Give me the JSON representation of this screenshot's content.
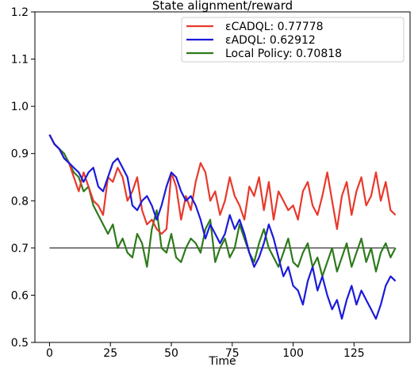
{
  "chart_data": {
    "type": "line",
    "title": "State alignment/reward",
    "xlabel": "Time",
    "ylabel": "",
    "xlim": [
      -6,
      148
    ],
    "ylim": [
      0.5,
      1.2
    ],
    "x_ticks": [
      0,
      25,
      50,
      75,
      100,
      125
    ],
    "y_ticks": [
      0.5,
      0.6,
      0.7,
      0.8,
      0.9,
      1.0,
      1.1,
      1.2
    ],
    "x_tick_labels": [
      "0",
      "25",
      "50",
      "75",
      "100",
      "125"
    ],
    "y_tick_labels": [
      "0.5",
      "0.6",
      "0.7",
      "0.8",
      "0.9",
      "1.0",
      "1.1",
      "1.2"
    ],
    "grid": false,
    "legend_position": "top-right",
    "reference_line": {
      "y": 0.7,
      "x": [
        0,
        142
      ],
      "color": "#000000"
    },
    "series": [
      {
        "name": "εCADQL: 0.77778",
        "color": "#e8392b",
        "x": [
          0,
          2,
          4,
          6,
          8,
          10,
          12,
          14,
          16,
          18,
          20,
          22,
          24,
          26,
          28,
          30,
          32,
          34,
          36,
          38,
          40,
          42,
          44,
          46,
          48,
          50,
          52,
          54,
          56,
          58,
          60,
          62,
          64,
          66,
          68,
          70,
          72,
          74,
          76,
          78,
          80,
          82,
          84,
          86,
          88,
          90,
          92,
          94,
          96,
          98,
          100,
          102,
          104,
          106,
          108,
          110,
          112,
          114,
          116,
          118,
          120,
          122,
          124,
          126,
          128,
          130,
          132,
          134,
          136,
          138,
          140,
          142
        ],
        "y": [
          0.94,
          0.92,
          0.91,
          0.89,
          0.88,
          0.85,
          0.82,
          0.86,
          0.83,
          0.8,
          0.79,
          0.77,
          0.85,
          0.84,
          0.87,
          0.85,
          0.8,
          0.82,
          0.85,
          0.78,
          0.75,
          0.76,
          0.74,
          0.73,
          0.74,
          0.86,
          0.83,
          0.76,
          0.81,
          0.78,
          0.84,
          0.88,
          0.86,
          0.8,
          0.82,
          0.77,
          0.8,
          0.85,
          0.81,
          0.79,
          0.76,
          0.83,
          0.81,
          0.85,
          0.78,
          0.84,
          0.76,
          0.82,
          0.8,
          0.78,
          0.79,
          0.76,
          0.82,
          0.84,
          0.79,
          0.77,
          0.81,
          0.86,
          0.8,
          0.74,
          0.81,
          0.84,
          0.77,
          0.82,
          0.85,
          0.79,
          0.81,
          0.86,
          0.8,
          0.84,
          0.78,
          0.77
        ]
      },
      {
        "name": "εADQL: 0.62912",
        "color": "#1a1adb",
        "x": [
          0,
          2,
          4,
          6,
          8,
          10,
          12,
          14,
          16,
          18,
          20,
          22,
          24,
          26,
          28,
          30,
          32,
          34,
          36,
          38,
          40,
          42,
          44,
          46,
          48,
          50,
          52,
          54,
          56,
          58,
          60,
          62,
          64,
          66,
          68,
          70,
          72,
          74,
          76,
          78,
          80,
          82,
          84,
          86,
          88,
          90,
          92,
          94,
          96,
          98,
          100,
          102,
          104,
          106,
          108,
          110,
          112,
          114,
          116,
          118,
          120,
          122,
          124,
          126,
          128,
          130,
          132,
          134,
          136,
          138,
          140,
          142
        ],
        "y": [
          0.94,
          0.92,
          0.91,
          0.89,
          0.88,
          0.87,
          0.86,
          0.84,
          0.86,
          0.87,
          0.83,
          0.82,
          0.85,
          0.88,
          0.89,
          0.87,
          0.85,
          0.79,
          0.78,
          0.8,
          0.81,
          0.79,
          0.76,
          0.79,
          0.83,
          0.86,
          0.85,
          0.82,
          0.8,
          0.81,
          0.79,
          0.76,
          0.72,
          0.75,
          0.73,
          0.71,
          0.73,
          0.77,
          0.74,
          0.76,
          0.73,
          0.69,
          0.66,
          0.68,
          0.71,
          0.75,
          0.72,
          0.68,
          0.64,
          0.66,
          0.62,
          0.61,
          0.58,
          0.63,
          0.66,
          0.61,
          0.64,
          0.6,
          0.57,
          0.59,
          0.55,
          0.59,
          0.62,
          0.58,
          0.61,
          0.59,
          0.57,
          0.55,
          0.58,
          0.62,
          0.64,
          0.63
        ]
      },
      {
        "name": "Local Policy: 0.70818",
        "color": "#2e7a1c",
        "x": [
          0,
          2,
          4,
          6,
          8,
          10,
          12,
          14,
          16,
          18,
          20,
          22,
          24,
          26,
          28,
          30,
          32,
          34,
          36,
          38,
          40,
          42,
          44,
          46,
          48,
          50,
          52,
          54,
          56,
          58,
          60,
          62,
          64,
          66,
          68,
          70,
          72,
          74,
          76,
          78,
          80,
          82,
          84,
          86,
          88,
          90,
          92,
          94,
          96,
          98,
          100,
          102,
          104,
          106,
          108,
          110,
          112,
          114,
          116,
          118,
          120,
          122,
          124,
          126,
          128,
          130,
          132,
          134,
          136,
          138,
          140,
          142
        ],
        "y": [
          0.94,
          0.92,
          0.91,
          0.9,
          0.88,
          0.86,
          0.85,
          0.82,
          0.83,
          0.79,
          0.77,
          0.75,
          0.73,
          0.75,
          0.7,
          0.72,
          0.69,
          0.68,
          0.73,
          0.71,
          0.66,
          0.74,
          0.78,
          0.7,
          0.69,
          0.73,
          0.68,
          0.67,
          0.7,
          0.72,
          0.71,
          0.69,
          0.74,
          0.76,
          0.67,
          0.7,
          0.72,
          0.68,
          0.7,
          0.75,
          0.72,
          0.69,
          0.67,
          0.71,
          0.74,
          0.7,
          0.68,
          0.66,
          0.69,
          0.72,
          0.67,
          0.66,
          0.69,
          0.71,
          0.66,
          0.68,
          0.64,
          0.67,
          0.7,
          0.65,
          0.68,
          0.71,
          0.66,
          0.69,
          0.72,
          0.67,
          0.7,
          0.65,
          0.69,
          0.71,
          0.68,
          0.7
        ]
      }
    ]
  }
}
